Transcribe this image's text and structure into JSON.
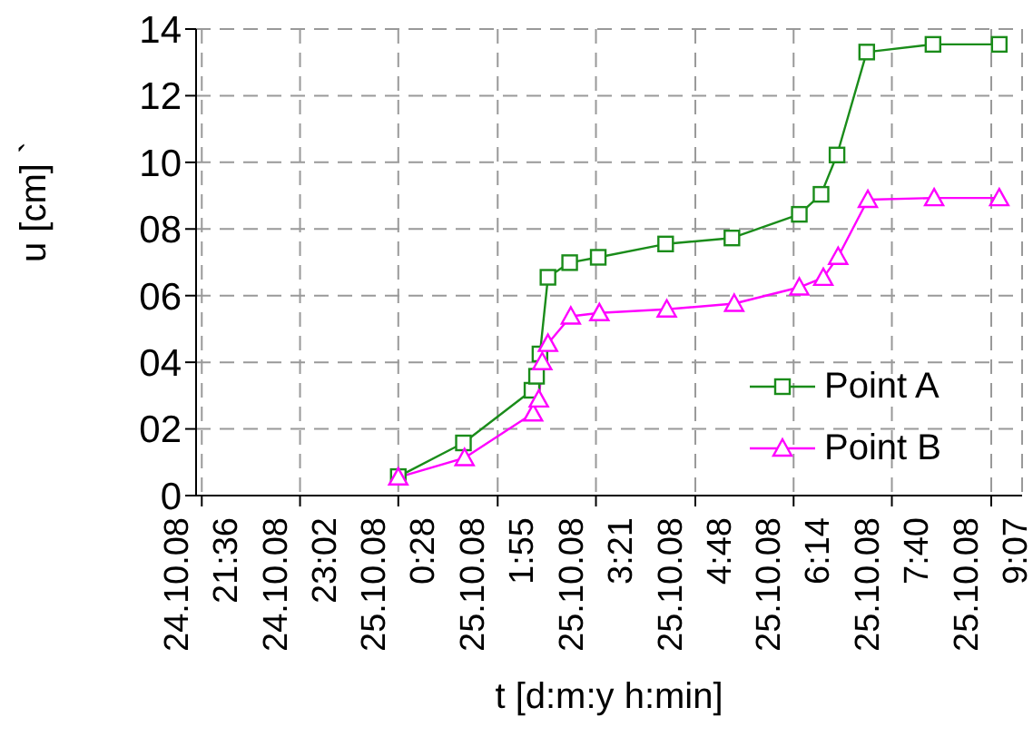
{
  "chart_data": {
    "type": "line",
    "xlabel": "t  [d:m:y h:min]",
    "ylabel": "u [cm] `",
    "xlim": [
      "--10-24T21:31",
      "--10-25T09:34"
    ],
    "ylim": [
      0,
      14
    ],
    "xticks": [
      {
        "value": "--10-24T21:36",
        "label": "24.10.08\n21:36"
      },
      {
        "value": "--10-24T23:02",
        "label": "24.10.08\n23:02"
      },
      {
        "value": "--10-25T00:28",
        "label": "25.10.08\n0:28"
      },
      {
        "value": "--10-25T01:55",
        "label": "25.10.08\n1:55"
      },
      {
        "value": "--10-25T03:21",
        "label": "25.10.08\n3:21"
      },
      {
        "value": "--10-25T04:48",
        "label": "25.10.08\n4:48"
      },
      {
        "value": "--10-25T06:14",
        "label": "25.10.08\n6:14"
      },
      {
        "value": "--10-25T07:40",
        "label": "25.10.08\n7:40"
      },
      {
        "value": "--10-25T09:07",
        "label": "25.10.08\n9:07"
      }
    ],
    "yticks": [
      0,
      {
        "value": 2,
        "label": "02"
      },
      {
        "value": 4,
        "label": "04"
      },
      {
        "value": 6,
        "label": "06"
      },
      {
        "value": 8,
        "label": "08"
      },
      10,
      12,
      14
    ],
    "grid": true,
    "legend": "bottom right",
    "line_style": "solid",
    "series": [
      {
        "name": "Point A",
        "color": "#1a8c1a",
        "marker": "square",
        "x": [
          "--10-25T00:28",
          "--10-25T01:25",
          "--10-25T02:25",
          "--10-25T02:29",
          "--10-25T02:32",
          "--10-25T02:39",
          "--10-25T02:58",
          "--10-25T03:23",
          "--10-25T04:22",
          "--10-25T05:20",
          "--10-25T06:19",
          "--10-25T06:38",
          "--10-25T06:52",
          "--10-25T07:18",
          "--10-25T08:16",
          "--10-25T09:14"
        ],
        "values": [
          0.57,
          1.58,
          3.16,
          3.58,
          4.25,
          6.55,
          6.99,
          7.15,
          7.55,
          7.73,
          8.44,
          9.04,
          10.22,
          13.31,
          13.54,
          13.54
        ]
      },
      {
        "name": "Point B",
        "color": "#ff00ff",
        "marker": "triangle",
        "x": [
          "--10-25T00:28",
          "--10-25T01:26",
          "--10-25T02:26",
          "--10-25T02:31",
          "--10-25T02:34",
          "--10-25T02:39",
          "--10-25T02:59",
          "--10-25T03:24",
          "--10-25T04:23",
          "--10-25T05:22",
          "--10-25T06:19",
          "--10-25T06:40",
          "--10-25T06:53",
          "--10-25T07:19",
          "--10-25T08:17",
          "--10-25T09:14"
        ],
        "values": [
          0.55,
          1.13,
          2.47,
          2.89,
          4.01,
          4.56,
          5.38,
          5.48,
          5.59,
          5.76,
          6.25,
          6.54,
          7.17,
          8.88,
          8.93,
          8.93
        ]
      }
    ]
  }
}
